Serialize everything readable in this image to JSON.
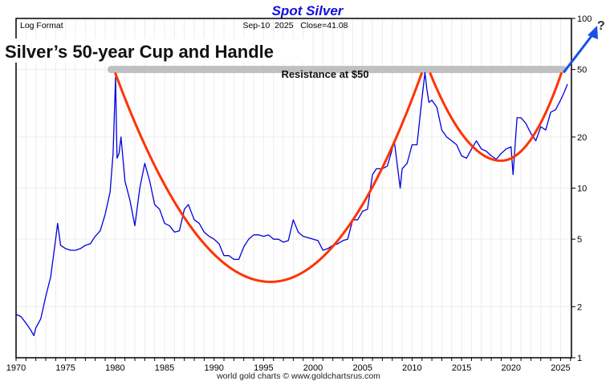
{
  "chart_data": {
    "type": "line",
    "title": "Spot Silver",
    "subtitle_left": "Log Format",
    "date_label": "Sep-10  2025   Close=41.08",
    "headline": "Silver’s 50-year Cup and Handle",
    "annotation": "Resistance at $50",
    "question_mark": "?",
    "footer": "world gold charts © www.goldchartsrus.com",
    "y_scale": "log",
    "ylim": [
      1,
      100
    ],
    "xlim": [
      1970,
      2026.1
    ],
    "y_ticks": [
      1,
      2,
      5,
      10,
      20,
      50,
      100
    ],
    "y_tick_labels": [
      "1",
      "2",
      "5",
      "10",
      "20",
      "50",
      "100"
    ],
    "x_ticks": [
      1970,
      1975,
      1980,
      1985,
      1990,
      1995,
      2000,
      2005,
      2010,
      2015,
      2020,
      2025
    ],
    "x_tick_labels": [
      "1970",
      "1975",
      "1980",
      "1985",
      "1990",
      "1995",
      "2000",
      "2005",
      "2010",
      "2015",
      "2020",
      "2025"
    ],
    "resistance_level": 50,
    "colors": {
      "price": "#0000dd",
      "cup": "#ff3300",
      "arrow": "#1a4fe6",
      "title": "#1010dd",
      "resistance": "#c0c0c0"
    },
    "series": [
      {
        "name": "Spot Silver",
        "x": [
          1970,
          1970.5,
          1971,
          1971.5,
          1971.8,
          1972,
          1972.5,
          1973,
          1973.5,
          1974,
          1974.2,
          1974.5,
          1975,
          1975.5,
          1976,
          1976.5,
          1977,
          1977.5,
          1978,
          1978.5,
          1979,
          1979.5,
          1979.8,
          1980.05,
          1980.2,
          1980.4,
          1980.6,
          1981,
          1981.5,
          1982,
          1982.5,
          1983,
          1983.5,
          1984,
          1984.5,
          1985,
          1985.5,
          1986,
          1986.5,
          1987,
          1987.4,
          1988,
          1988.5,
          1989,
          1989.5,
          1990,
          1990.5,
          1991,
          1991.5,
          1992,
          1992.5,
          1993,
          1993.5,
          1994,
          1994.5,
          1995,
          1995.5,
          1996,
          1996.5,
          1997,
          1997.5,
          1998,
          1998.5,
          1999,
          1999.5,
          2000,
          2000.5,
          2001,
          2001.5,
          2002,
          2002.5,
          2003,
          2003.5,
          2004,
          2004.5,
          2005,
          2005.5,
          2006,
          2006.4,
          2007,
          2007.5,
          2008,
          2008.2,
          2008.8,
          2009,
          2009.5,
          2010,
          2010.5,
          2010.9,
          2011.3,
          2011.5,
          2011.7,
          2012,
          2012.5,
          2013,
          2013.5,
          2014,
          2014.5,
          2015,
          2015.5,
          2016,
          2016.5,
          2017,
          2017.5,
          2018,
          2018.5,
          2019,
          2019.5,
          2020,
          2020.2,
          2020.6,
          2021,
          2021.5,
          2022,
          2022.5,
          2023,
          2023.5,
          2024,
          2024.5,
          2025,
          2025.3,
          2025.7
        ],
        "values": [
          1.8,
          1.75,
          1.6,
          1.45,
          1.35,
          1.5,
          1.7,
          2.3,
          3.0,
          5.0,
          6.2,
          4.6,
          4.4,
          4.3,
          4.3,
          4.4,
          4.6,
          4.7,
          5.2,
          5.6,
          7.0,
          9.5,
          16,
          45,
          15,
          16,
          20,
          11,
          8.5,
          6.0,
          10,
          14,
          11,
          8.0,
          7.5,
          6.2,
          6.0,
          5.5,
          5.6,
          7.5,
          8.0,
          6.5,
          6.2,
          5.5,
          5.2,
          5.0,
          4.7,
          4.0,
          4.0,
          3.8,
          3.8,
          4.5,
          5.0,
          5.3,
          5.3,
          5.2,
          5.3,
          5.0,
          5.0,
          4.8,
          4.9,
          6.5,
          5.5,
          5.2,
          5.1,
          5.0,
          4.9,
          4.3,
          4.4,
          4.6,
          4.7,
          4.9,
          5.0,
          6.5,
          6.5,
          7.3,
          7.5,
          12,
          13,
          13,
          13.5,
          17,
          19,
          10,
          13,
          14,
          18,
          18,
          30,
          48,
          38,
          32,
          33,
          30,
          22,
          20,
          19,
          18,
          15.5,
          15,
          17,
          19,
          17,
          16.5,
          15.5,
          14.8,
          16,
          17,
          17.5,
          12,
          26,
          26,
          24,
          21,
          19,
          23,
          22,
          28,
          29,
          33,
          36,
          41
        ]
      }
    ],
    "cup_curve": {
      "x": [
        1980,
        1995.7,
        2011
      ],
      "values": [
        48,
        2.8,
        48
      ]
    },
    "handle_curve": {
      "x": [
        2011.8,
        2019,
        2025.1
      ],
      "values": [
        48,
        14.5,
        48
      ]
    },
    "arrow": {
      "from": [
        2025.3,
        48
      ],
      "to": [
        2028,
        85
      ]
    }
  }
}
